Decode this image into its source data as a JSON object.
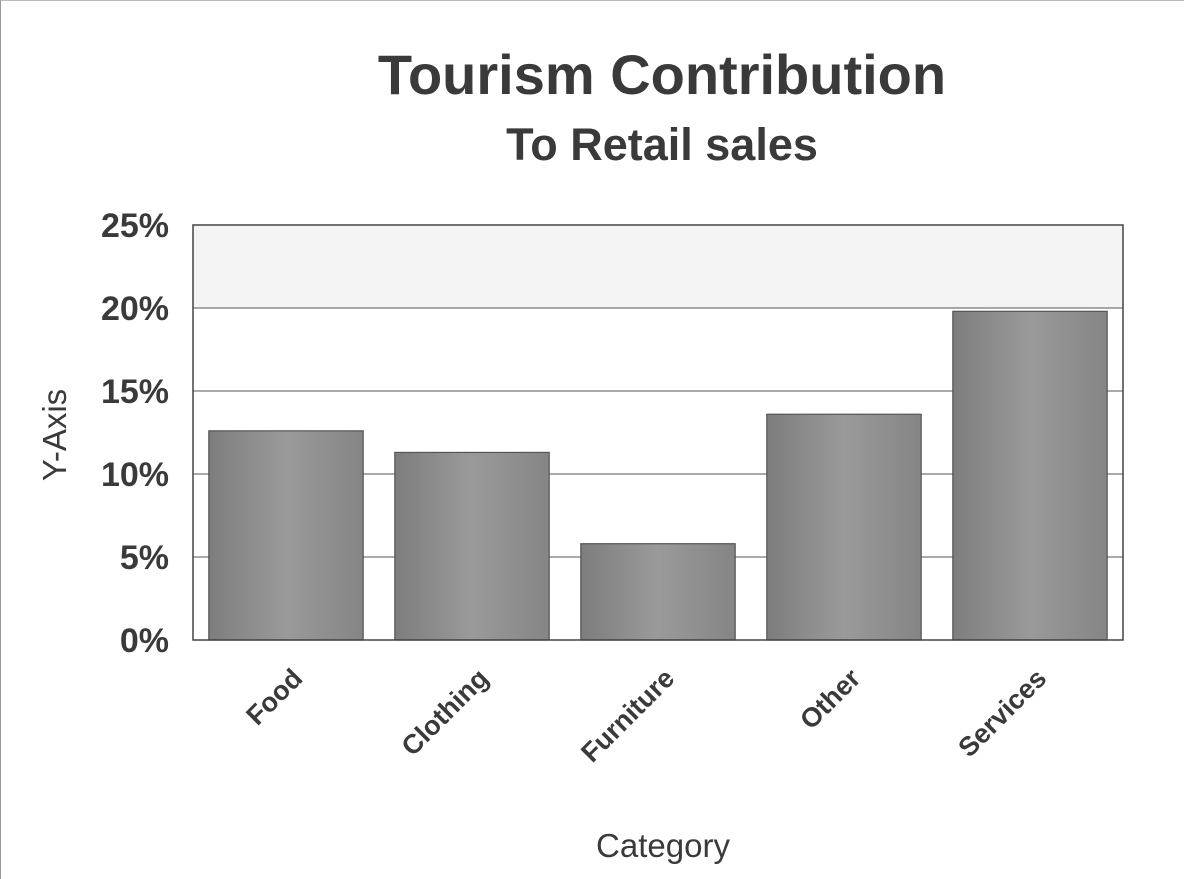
{
  "chart_data": {
    "type": "bar",
    "title": "Tourism Contribution",
    "subtitle": "To Retail sales",
    "xlabel": "Category",
    "ylabel": "Y-Axis",
    "categories": [
      "Food",
      "Clothing",
      "Furniture",
      "Other",
      "Services"
    ],
    "values": [
      12.6,
      11.3,
      5.8,
      13.6,
      19.8
    ],
    "ylim": [
      0,
      25
    ],
    "yticks": [
      0,
      5,
      10,
      15,
      20,
      25
    ],
    "ytick_labels": [
      "0%",
      "5%",
      "10%",
      "15%",
      "20%",
      "25%"
    ],
    "grid": true,
    "legend": "none",
    "bar_color": "#8f8f8f"
  }
}
